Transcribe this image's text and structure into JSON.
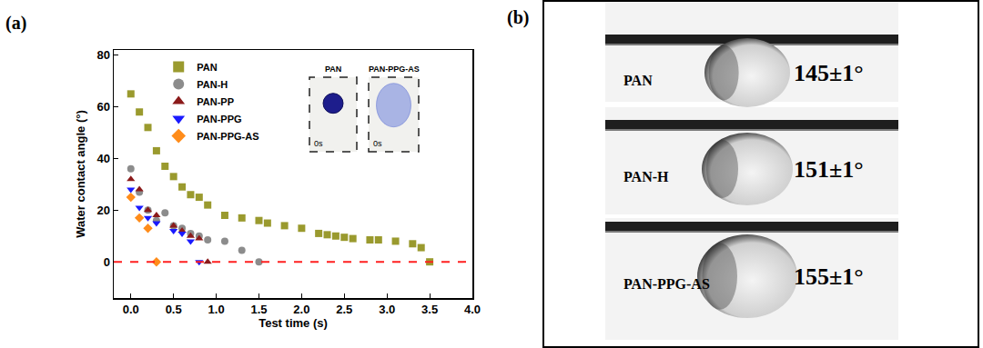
{
  "chart_data": {
    "type": "scatter",
    "annotations": [
      "(a)"
    ],
    "x_label": "Test time (s)",
    "y_label": "Water contact angle (°)",
    "xlim": [
      -0.2,
      4.0
    ],
    "xticks": [
      {
        "value": 0,
        "label": "0.0"
      },
      {
        "value": 0.5,
        "label": "0.5"
      },
      {
        "value": 1,
        "label": "1.0"
      },
      {
        "value": 1.5,
        "label": "1.5"
      },
      {
        "value": 2,
        "label": "2.0"
      },
      {
        "value": 2.5,
        "label": "2.5"
      },
      {
        "value": 3,
        "label": "3.0"
      },
      {
        "value": 3.5,
        "label": "3.5"
      },
      {
        "value": 4,
        "label": "4.0"
      }
    ],
    "ylim": [
      -14,
      82
    ],
    "yticks": [
      0,
      20,
      40,
      60,
      80
    ],
    "grid": false,
    "legend": "top-left",
    "reference_line": {
      "y": 0,
      "color": "#ff2020",
      "line_style": "dash"
    },
    "insets": [
      {
        "label": "PAN",
        "time": "0s"
      },
      {
        "label": "PAN-PPG-AS",
        "time": "0s"
      }
    ],
    "series": [
      {
        "name": "PAN",
        "color": "#9a9a2e",
        "marker": "square",
        "x": [
          0,
          0.1,
          0.2,
          0.3,
          0.4,
          0.5,
          0.6,
          0.7,
          0.8,
          0.9,
          1.1,
          1.3,
          1.5,
          1.6,
          1.8,
          2.0,
          2.2,
          2.3,
          2.4,
          2.5,
          2.6,
          2.8,
          2.9,
          3.1,
          3.3,
          3.4,
          3.5
        ],
        "values": [
          65,
          58,
          52,
          43,
          37,
          33,
          29,
          26,
          25,
          22,
          18,
          17,
          16,
          15,
          14,
          13,
          11,
          10.5,
          10,
          9.5,
          9,
          8.5,
          8.5,
          8,
          7,
          5.5,
          0
        ]
      },
      {
        "name": "PAN-H",
        "color": "#8c8c8c",
        "marker": "circle",
        "x": [
          0,
          0.1,
          0.2,
          0.3,
          0.4,
          0.5,
          0.6,
          0.7,
          0.8,
          0.9,
          1.1,
          1.3,
          1.5
        ],
        "values": [
          36,
          27,
          20,
          16,
          19,
          14,
          13,
          11,
          10,
          8.5,
          8,
          4.5,
          0
        ]
      },
      {
        "name": "PAN-PP",
        "color": "#8b1a1a",
        "marker": "triangle-up",
        "x": [
          0,
          0.1,
          0.2,
          0.3,
          0.5,
          0.6,
          0.7,
          0.8,
          0.9
        ],
        "values": [
          32,
          28,
          20,
          18,
          14,
          12,
          10,
          9,
          0
        ]
      },
      {
        "name": "PAN-PPG",
        "color": "#1a1aff",
        "marker": "triangle-down",
        "x": [
          0,
          0.1,
          0.2,
          0.3,
          0.5,
          0.6,
          0.7,
          0.8
        ],
        "values": [
          28,
          21,
          17,
          15,
          12,
          11,
          8,
          0
        ]
      },
      {
        "name": "PAN-PPG-AS",
        "color": "#ff8c1a",
        "marker": "diamond",
        "x": [
          0,
          0.1,
          0.2,
          0.3
        ],
        "values": [
          25,
          17,
          13,
          0
        ]
      }
    ]
  },
  "panel_b": {
    "label": "(b)",
    "droplets": [
      {
        "name": "PAN",
        "angle": "145±1°"
      },
      {
        "name": "PAN-H",
        "angle": "151±1°"
      },
      {
        "name": "PAN-PPG-AS",
        "angle": "155±1°"
      }
    ]
  }
}
